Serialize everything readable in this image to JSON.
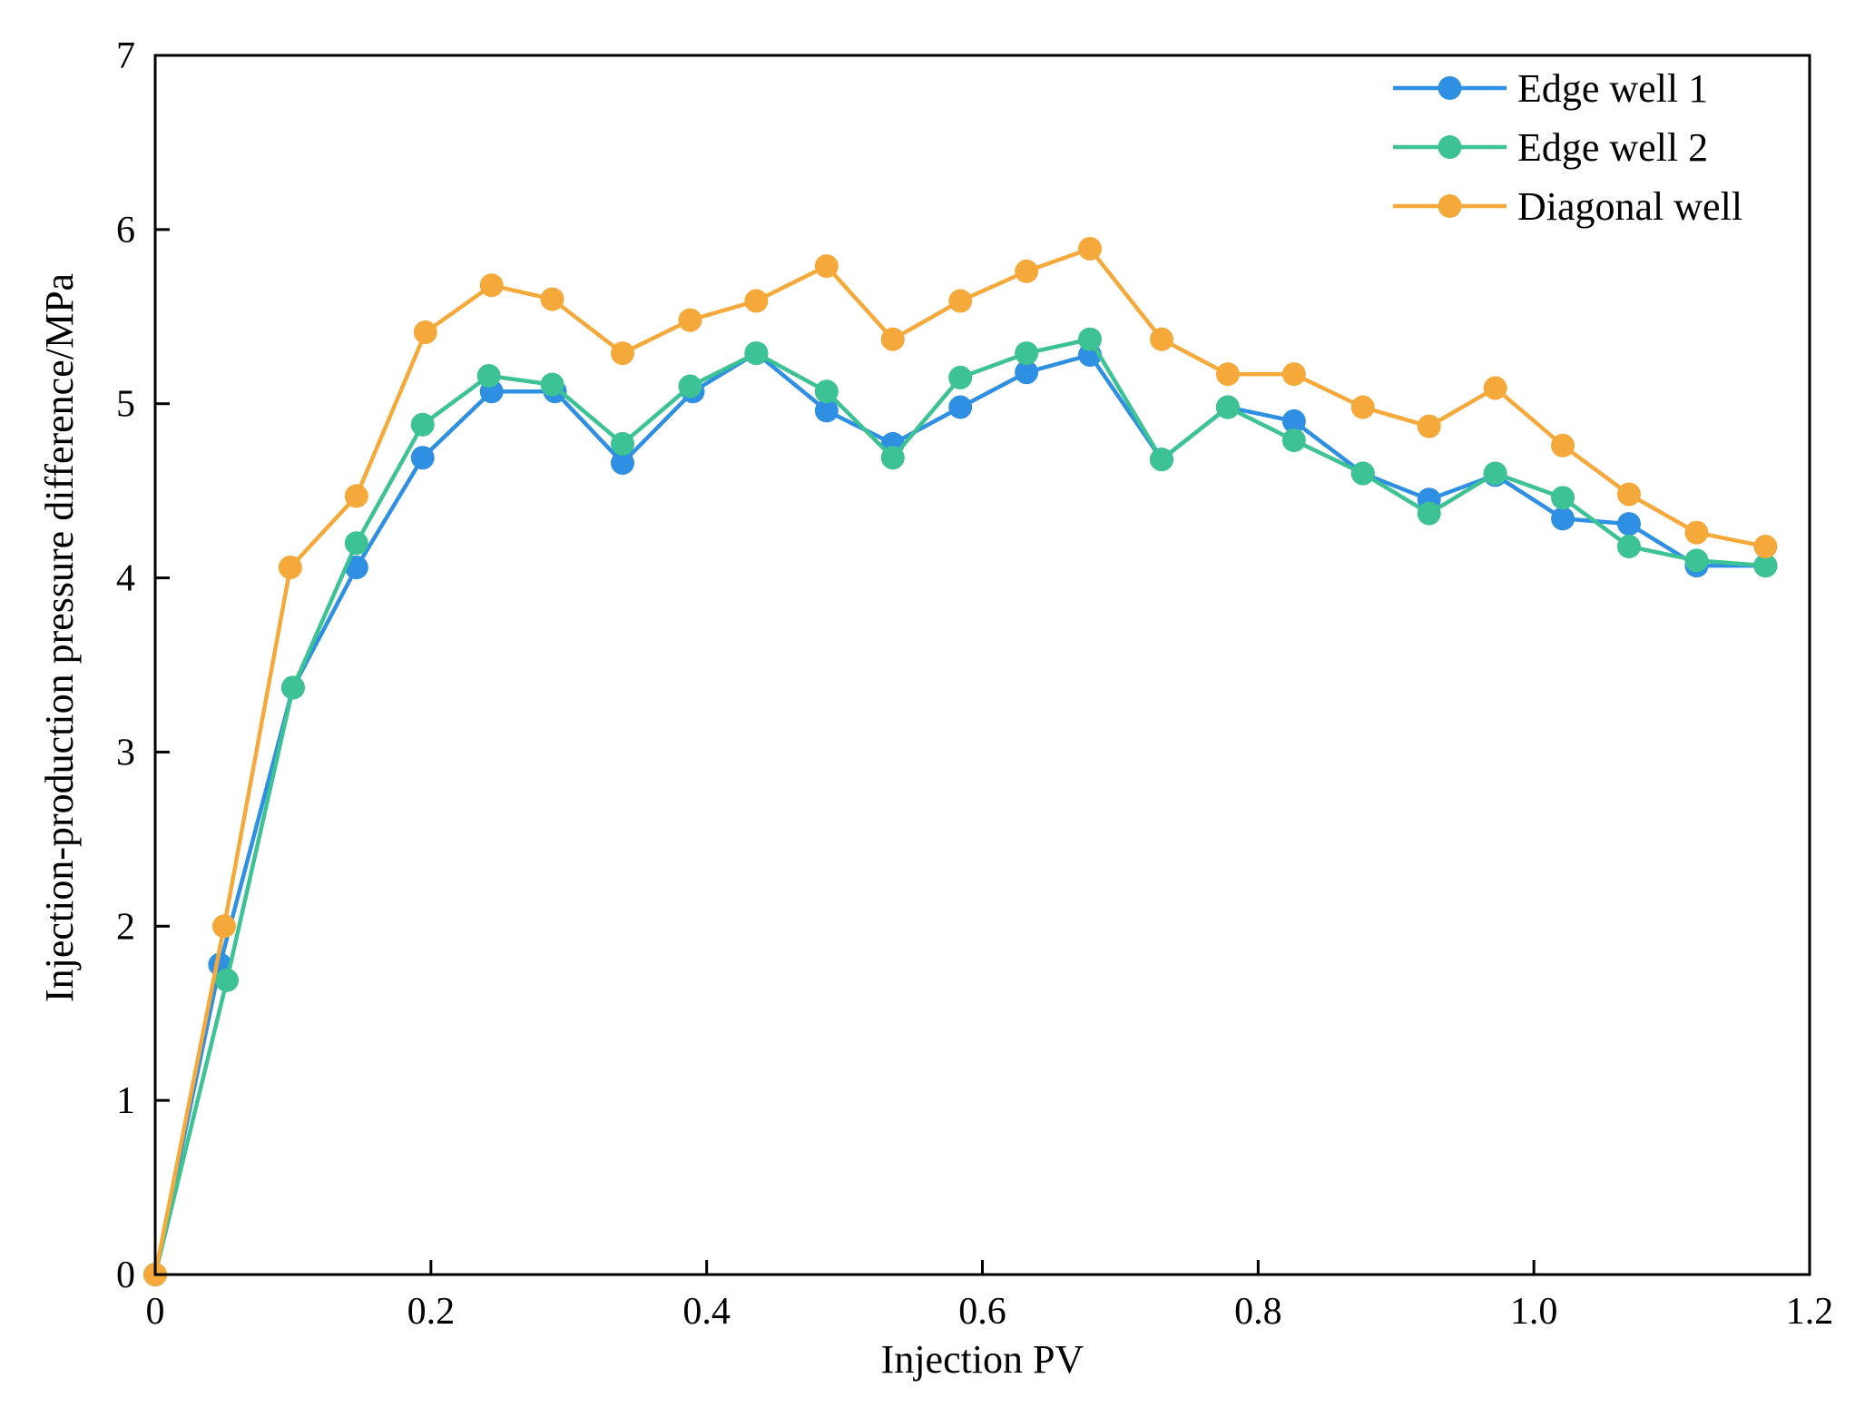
{
  "chart_data": {
    "type": "line",
    "title": "",
    "xlabel": "Injection PV",
    "ylabel": "Injection-production pressure difference/MPa",
    "xlim": [
      0,
      1.2
    ],
    "ylim": [
      0,
      7
    ],
    "xticks": [
      0,
      0.2,
      0.4,
      0.6,
      0.8,
      1.0,
      1.2
    ],
    "xtick_labels": [
      "0",
      "0.2",
      "0.4",
      "0.6",
      "0.8",
      "1.0",
      "1.2"
    ],
    "yticks": [
      0,
      1,
      2,
      3,
      4,
      5,
      6,
      7
    ],
    "ytick_labels": [
      "0",
      "1",
      "2",
      "3",
      "4",
      "5",
      "6",
      "7"
    ],
    "grid": false,
    "legend_position": "top-right",
    "series": [
      {
        "name": "Edge well 1",
        "color": "#2E8FE3",
        "x": [
          0,
          0.047,
          0.1,
          0.146,
          0.194,
          0.244,
          0.29,
          0.339,
          0.39,
          0.436,
          0.487,
          0.535,
          0.584,
          0.632,
          0.678,
          0.73,
          0.778,
          0.826,
          0.876,
          0.924,
          0.972,
          1.021,
          1.069,
          1.118,
          1.168
        ],
        "y": [
          0,
          1.78,
          3.37,
          4.06,
          4.69,
          5.07,
          5.07,
          4.66,
          5.07,
          5.29,
          4.96,
          4.77,
          4.98,
          5.18,
          5.28,
          4.68,
          4.98,
          4.9,
          4.6,
          4.45,
          4.59,
          4.34,
          4.31,
          4.07,
          4.07
        ]
      },
      {
        "name": "Edge well 2",
        "color": "#3CC294",
        "x": [
          0,
          0.052,
          0.1,
          0.146,
          0.194,
          0.242,
          0.288,
          0.339,
          0.388,
          0.436,
          0.487,
          0.535,
          0.584,
          0.632,
          0.678,
          0.73,
          0.778,
          0.826,
          0.876,
          0.924,
          0.972,
          1.021,
          1.069,
          1.118,
          1.168
        ],
        "y": [
          0,
          1.69,
          3.37,
          4.2,
          4.88,
          5.16,
          5.11,
          4.77,
          5.1,
          5.29,
          5.07,
          4.69,
          5.15,
          5.29,
          5.37,
          4.68,
          4.98,
          4.79,
          4.6,
          4.37,
          4.6,
          4.46,
          4.18,
          4.1,
          4.07
        ]
      },
      {
        "name": "Diagonal well",
        "color": "#F5A93B",
        "x": [
          0,
          0.05,
          0.098,
          0.146,
          0.196,
          0.244,
          0.288,
          0.339,
          0.388,
          0.436,
          0.487,
          0.535,
          0.584,
          0.632,
          0.678,
          0.73,
          0.778,
          0.826,
          0.876,
          0.924,
          0.972,
          1.021,
          1.069,
          1.118,
          1.168
        ],
        "y": [
          0,
          2.0,
          4.06,
          4.47,
          5.41,
          5.68,
          5.6,
          5.29,
          5.48,
          5.59,
          5.79,
          5.37,
          5.59,
          5.76,
          5.89,
          5.37,
          5.17,
          5.17,
          4.98,
          4.87,
          5.09,
          4.76,
          4.48,
          4.26,
          4.18
        ]
      }
    ]
  }
}
